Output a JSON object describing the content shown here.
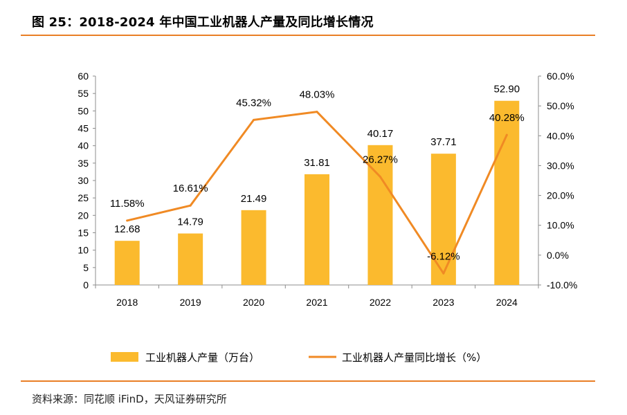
{
  "title": "图 25：2018-2024 年中国工业机器人产量及同比增长情况",
  "source": "资料来源：同花顺 iFinD，天风证券研究所",
  "colors": {
    "accent": "#E97E25",
    "bar": "#FBBA2E",
    "line": "#F08A24"
  },
  "chart_data": {
    "type": "bar+line",
    "categories": [
      "2018",
      "2019",
      "2020",
      "2021",
      "2022",
      "2023",
      "2024"
    ],
    "series": [
      {
        "name": "工业机器人产量（万台）",
        "type": "bar",
        "axis": "left",
        "values": [
          12.68,
          14.79,
          21.49,
          31.81,
          40.17,
          37.71,
          52.9
        ],
        "labels": [
          "12.68",
          "14.79",
          "21.49",
          "31.81",
          "40.17",
          "37.71",
          "52.90"
        ]
      },
      {
        "name": "工业机器人产量同比增长（%）",
        "type": "line",
        "axis": "right",
        "values": [
          11.58,
          16.61,
          45.32,
          48.03,
          26.27,
          -6.12,
          40.28
        ],
        "labels": [
          "11.58%",
          "16.61%",
          "45.32%",
          "48.03%",
          "26.27%",
          "-6.12%",
          "40.28%"
        ]
      }
    ],
    "y_left": {
      "min": 0,
      "max": 60,
      "step": 5,
      "ticks": [
        "0",
        "5",
        "10",
        "15",
        "20",
        "25",
        "30",
        "35",
        "40",
        "45",
        "50",
        "55",
        "60"
      ]
    },
    "y_right": {
      "min": -10,
      "max": 60,
      "step": 10,
      "ticks": [
        "-10.0%",
        "0.0%",
        "10.0%",
        "20.0%",
        "30.0%",
        "40.0%",
        "50.0%",
        "60.0%"
      ]
    },
    "grid": false,
    "legend": "bottom"
  }
}
